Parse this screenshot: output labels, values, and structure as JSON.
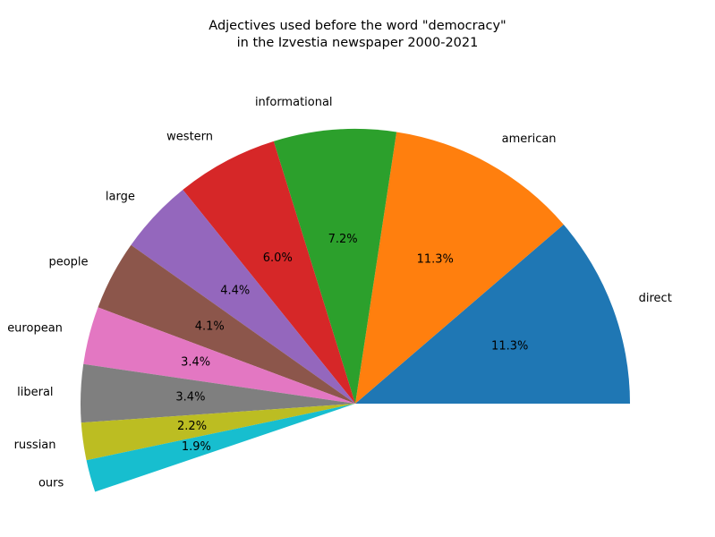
{
  "chart_data": {
    "type": "pie",
    "title_lines": [
      "Adjectives used before the word \"democracy\"",
      "in the Izvestia newspaper 2000-2021"
    ],
    "start_angle_deg": 0,
    "direction": "counterclockwise",
    "slices": [
      {
        "label": "direct",
        "percent": 11.3,
        "pct_text": "11.3%",
        "color": "#1f77b4"
      },
      {
        "label": "american",
        "percent": 11.3,
        "pct_text": "11.3%",
        "color": "#ff7f0e"
      },
      {
        "label": "informational",
        "percent": 7.2,
        "pct_text": "7.2%",
        "color": "#2ca02c"
      },
      {
        "label": "western",
        "percent": 6.0,
        "pct_text": "6.0%",
        "color": "#d62728"
      },
      {
        "label": "large",
        "percent": 4.4,
        "pct_text": "4.4%",
        "color": "#9467bd"
      },
      {
        "label": "people",
        "percent": 4.1,
        "pct_text": "4.1%",
        "color": "#8c564b"
      },
      {
        "label": "european",
        "percent": 3.4,
        "pct_text": "3.4%",
        "color": "#e377c2"
      },
      {
        "label": "liberal",
        "percent": 3.4,
        "pct_text": "3.4%",
        "color": "#7f7f7f"
      },
      {
        "label": "russian",
        "percent": 2.2,
        "pct_text": "2.2%",
        "color": "#bcbd22"
      },
      {
        "label": "ours",
        "percent": 1.9,
        "pct_text": "1.9%",
        "color": "#17becf"
      }
    ]
  }
}
